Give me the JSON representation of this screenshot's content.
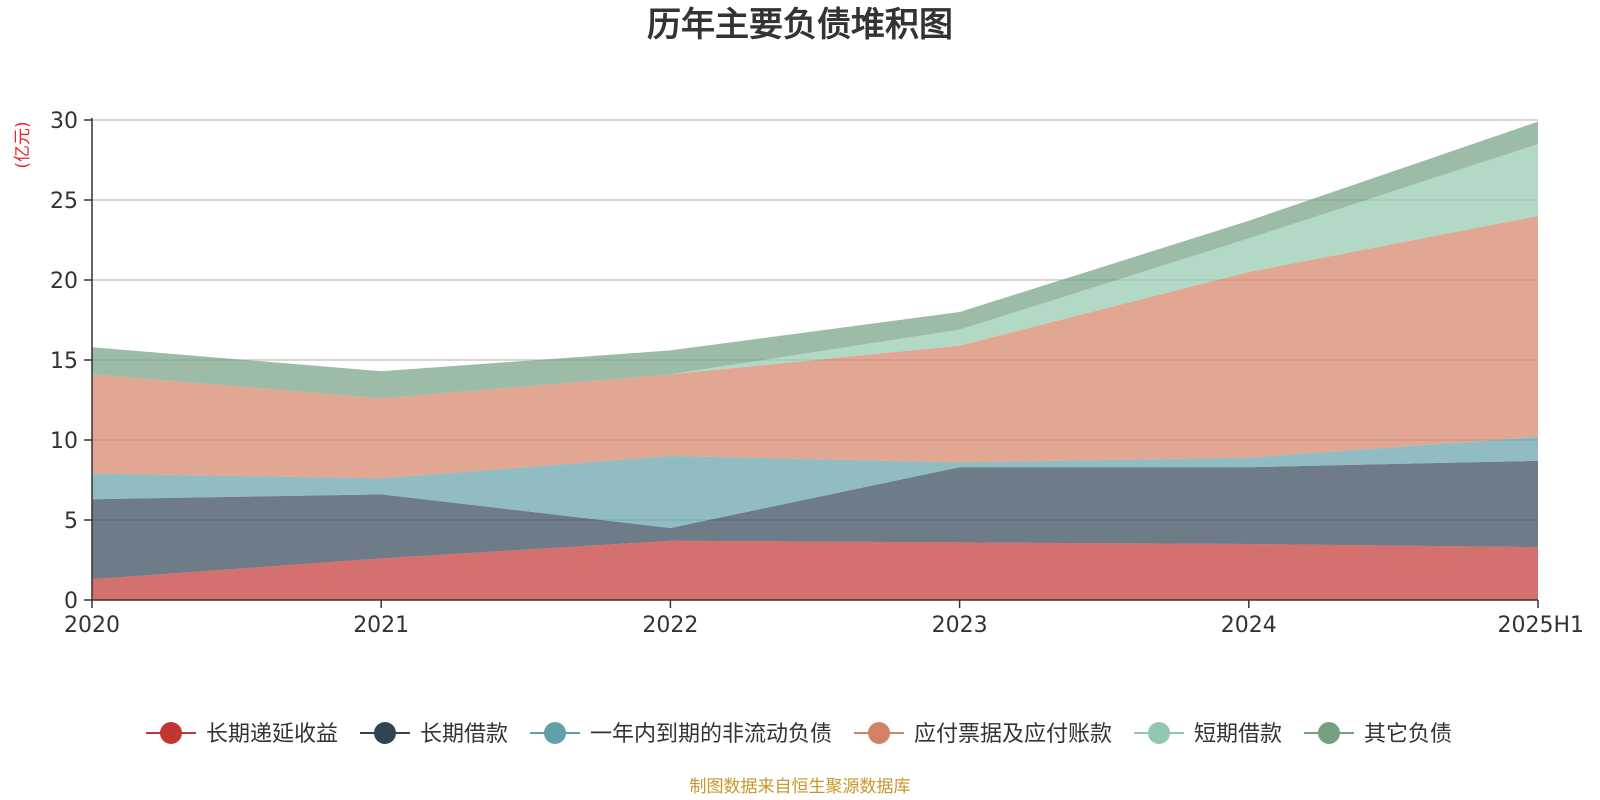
{
  "chart_data": {
    "type": "area",
    "title": "历年主要负债堆积图",
    "unit_label": "(亿元)",
    "categories": [
      "2020",
      "2021",
      "2022",
      "2023",
      "2024",
      "2025H1"
    ],
    "ylim": [
      0,
      30
    ],
    "yticks": [
      "0",
      "5",
      "10",
      "15",
      "20",
      "25",
      "30"
    ],
    "grid": true,
    "stacked": true,
    "legend_position": "bottom",
    "series": [
      {
        "name": "长期递延收益",
        "color": "#c23531",
        "values": [
          1.3,
          2.6,
          3.7,
          3.6,
          3.5,
          3.3
        ]
      },
      {
        "name": "长期借款",
        "color": "#2f4554",
        "values": [
          5.0,
          4.0,
          0.8,
          4.7,
          4.8,
          5.4
        ]
      },
      {
        "name": "一年内到期的非流动负债",
        "color": "#61a0a8",
        "values": [
          1.6,
          1.0,
          4.5,
          0.3,
          0.6,
          1.5
        ]
      },
      {
        "name": "应付票据及应付账款",
        "color": "#d48265",
        "values": [
          6.2,
          5.0,
          5.1,
          7.3,
          11.6,
          13.8
        ]
      },
      {
        "name": "短期借款",
        "color": "#91c7ae",
        "values": [
          0.0,
          0.0,
          0.0,
          1.0,
          2.1,
          4.5
        ]
      },
      {
        "name": "其它负债",
        "color": "#749f83",
        "values": [
          1.7,
          1.7,
          1.5,
          1.1,
          1.1,
          1.4
        ]
      }
    ],
    "source": "制图数据来自恒生聚源数据库"
  }
}
